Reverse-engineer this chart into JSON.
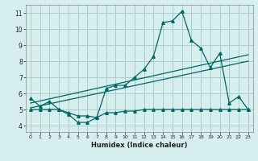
{
  "title": "",
  "xlabel": "Humidex (Indice chaleur)",
  "background_color": "#d6eeee",
  "line_color": "#006666",
  "grid_color": "#aacccc",
  "xlim": [
    -0.5,
    23.5
  ],
  "ylim": [
    3.6,
    11.5
  ],
  "yticks": [
    4,
    5,
    6,
    7,
    8,
    9,
    10,
    11
  ],
  "xticks": [
    0,
    1,
    2,
    3,
    4,
    5,
    6,
    7,
    8,
    9,
    10,
    11,
    12,
    13,
    14,
    15,
    16,
    17,
    18,
    19,
    20,
    21,
    22,
    23
  ],
  "series1_x": [
    0,
    1,
    2,
    3,
    4,
    5,
    6,
    7,
    8,
    9,
    10,
    11,
    12,
    13,
    14,
    15,
    16,
    17,
    18,
    19,
    20,
    21,
    22,
    23
  ],
  "series1_y": [
    5.7,
    5.2,
    5.5,
    5.0,
    4.7,
    4.2,
    4.2,
    4.5,
    6.3,
    6.5,
    6.5,
    7.0,
    7.5,
    8.3,
    10.4,
    10.5,
    11.1,
    9.3,
    8.8,
    7.6,
    8.5,
    5.4,
    5.8,
    5.0
  ],
  "series2_x": [
    0,
    1,
    2,
    3,
    4,
    5,
    6,
    7,
    8,
    9,
    10,
    11,
    12,
    13,
    14,
    15,
    16,
    17,
    18,
    19,
    20,
    21,
    22,
    23
  ],
  "series2_y": [
    5.0,
    5.0,
    5.0,
    5.0,
    4.8,
    4.6,
    4.6,
    4.5,
    4.8,
    4.8,
    4.9,
    4.9,
    5.0,
    5.0,
    5.0,
    5.0,
    5.0,
    5.0,
    5.0,
    5.0,
    5.0,
    5.0,
    5.0,
    5.0
  ],
  "series3_x": [
    0,
    23
  ],
  "series3_y": [
    5.4,
    8.4
  ],
  "series4_x": [
    0,
    23
  ],
  "series4_y": [
    5.1,
    8.0
  ]
}
